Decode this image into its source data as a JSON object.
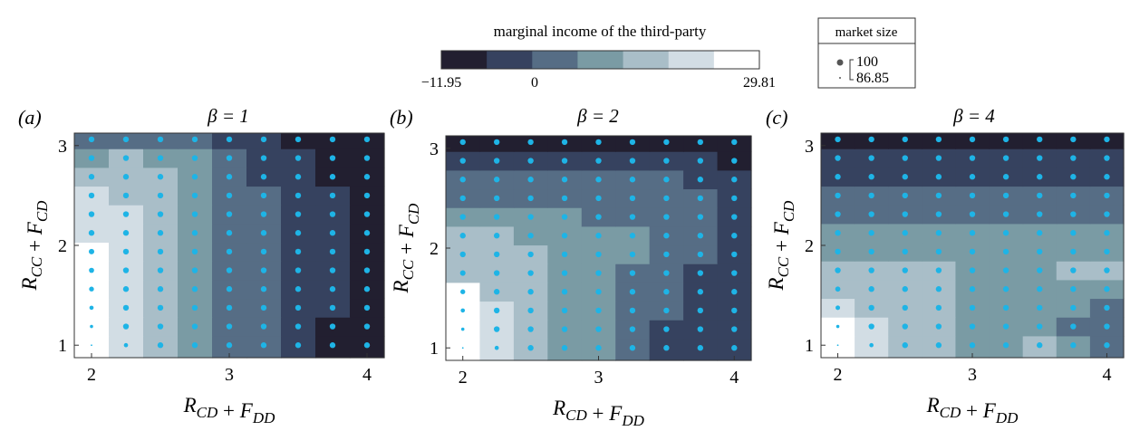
{
  "colorbar": {
    "title": "marginal income of the third-party",
    "min_label": "−11.95",
    "mid_label": "0",
    "max_label": "29.81",
    "colors": [
      "#221f30",
      "#36425f",
      "#566d85",
      "#7a9ba4",
      "#a9bec8",
      "#d2dde4",
      "#ffffff"
    ]
  },
  "size_legend": {
    "title": "market size",
    "max_label": "100",
    "min_label": "86.85",
    "dot_color": "#555555"
  },
  "dot_color": "#1eb4e6",
  "chart_data": [
    {
      "type": "heatmap",
      "panel_label": "(a)",
      "title": "β = 1",
      "xlabel": "R_CD + F_DD",
      "ylabel": "R_CC + F_CD",
      "xlim": [
        1.875,
        4.125
      ],
      "ylim": [
        0.875,
        3.125
      ],
      "xticks": [
        "2",
        "3",
        "4"
      ],
      "yticks": [
        "1",
        "2",
        "3"
      ],
      "x": [
        2.0,
        2.25,
        2.5,
        2.75,
        3.0,
        3.25,
        3.5,
        3.75,
        4.0
      ],
      "y": [
        1.0,
        1.1875,
        1.375,
        1.5625,
        1.75,
        1.9375,
        2.125,
        2.3125,
        2.5,
        2.6875,
        2.875,
        3.0625
      ],
      "color_levels": [
        [
          6,
          5,
          4,
          3,
          2,
          2,
          1,
          0,
          0
        ],
        [
          6,
          5,
          4,
          3,
          2,
          2,
          1,
          0,
          0
        ],
        [
          6,
          5,
          4,
          3,
          2,
          2,
          1,
          1,
          0
        ],
        [
          6,
          5,
          4,
          3,
          2,
          2,
          1,
          1,
          0
        ],
        [
          6,
          5,
          4,
          3,
          2,
          2,
          1,
          1,
          0
        ],
        [
          6,
          5,
          4,
          3,
          2,
          2,
          1,
          1,
          0
        ],
        [
          5,
          5,
          4,
          3,
          2,
          2,
          1,
          1,
          0
        ],
        [
          5,
          5,
          4,
          3,
          2,
          2,
          1,
          1,
          0
        ],
        [
          5,
          4,
          4,
          3,
          2,
          2,
          1,
          1,
          0
        ],
        [
          4,
          4,
          4,
          3,
          2,
          1,
          1,
          0,
          0
        ],
        [
          3,
          4,
          3,
          3,
          2,
          1,
          1,
          0,
          0
        ],
        [
          2,
          2,
          2,
          2,
          1,
          1,
          0,
          0,
          0
        ]
      ],
      "market_size": [
        [
          86.9,
          95,
          100,
          100,
          100,
          100,
          100,
          100,
          100
        ],
        [
          92,
          100,
          100,
          100,
          100,
          100,
          100,
          100,
          100
        ],
        [
          95,
          100,
          100,
          100,
          100,
          100,
          100,
          100,
          100
        ],
        [
          97,
          100,
          100,
          100,
          100,
          100,
          100,
          100,
          100
        ],
        [
          98,
          100,
          100,
          100,
          100,
          100,
          100,
          100,
          100
        ],
        [
          99,
          100,
          100,
          100,
          100,
          100,
          100,
          100,
          100
        ],
        [
          100,
          100,
          100,
          100,
          100,
          100,
          100,
          100,
          100
        ],
        [
          100,
          100,
          100,
          100,
          100,
          100,
          100,
          100,
          100
        ],
        [
          100,
          100,
          100,
          100,
          100,
          100,
          100,
          100,
          100
        ],
        [
          100,
          100,
          100,
          100,
          100,
          100,
          100,
          100,
          100
        ],
        [
          100,
          100,
          100,
          100,
          100,
          100,
          100,
          100,
          100
        ],
        [
          100,
          100,
          100,
          100,
          100,
          100,
          100,
          100,
          100
        ]
      ]
    },
    {
      "type": "heatmap",
      "panel_label": "(b)",
      "title": "β = 2",
      "xlabel": "R_CD + F_DD",
      "ylabel": "R_CC + F_CD",
      "xlim": [
        1.875,
        4.125
      ],
      "ylim": [
        0.875,
        3.125
      ],
      "xticks": [
        "2",
        "3",
        "4"
      ],
      "yticks": [
        "1",
        "2",
        "3"
      ],
      "x": [
        2.0,
        2.25,
        2.5,
        2.75,
        3.0,
        3.25,
        3.5,
        3.75,
        4.0
      ],
      "y": [
        1.0,
        1.1875,
        1.375,
        1.5625,
        1.75,
        1.9375,
        2.125,
        2.3125,
        2.5,
        2.6875,
        2.875,
        3.0625
      ],
      "color_levels": [
        [
          6,
          5,
          4,
          3,
          3,
          2,
          1,
          1,
          1
        ],
        [
          6,
          5,
          4,
          3,
          3,
          2,
          1,
          1,
          1
        ],
        [
          6,
          5,
          4,
          3,
          3,
          2,
          2,
          1,
          1
        ],
        [
          6,
          4,
          4,
          3,
          3,
          2,
          2,
          1,
          1
        ],
        [
          4,
          4,
          4,
          3,
          3,
          2,
          2,
          1,
          1
        ],
        [
          4,
          4,
          4,
          3,
          3,
          3,
          2,
          2,
          1
        ],
        [
          4,
          4,
          3,
          3,
          3,
          3,
          2,
          2,
          1
        ],
        [
          3,
          3,
          3,
          3,
          2,
          2,
          2,
          2,
          1
        ],
        [
          2,
          2,
          2,
          2,
          2,
          2,
          2,
          2,
          1
        ],
        [
          2,
          2,
          2,
          2,
          2,
          2,
          2,
          1,
          1
        ],
        [
          1,
          1,
          1,
          1,
          1,
          1,
          1,
          1,
          0
        ],
        [
          0,
          0,
          0,
          0,
          0,
          0,
          0,
          0,
          0
        ]
      ],
      "market_size": [
        [
          86.9,
          95,
          100,
          100,
          100,
          100,
          100,
          100,
          100
        ],
        [
          92,
          100,
          100,
          100,
          100,
          100,
          100,
          100,
          100
        ],
        [
          95,
          100,
          100,
          100,
          100,
          100,
          100,
          100,
          100
        ],
        [
          97,
          100,
          100,
          100,
          100,
          100,
          100,
          100,
          100
        ],
        [
          99,
          100,
          100,
          100,
          100,
          100,
          100,
          100,
          100
        ],
        [
          100,
          100,
          100,
          100,
          100,
          100,
          100,
          100,
          100
        ],
        [
          100,
          100,
          100,
          100,
          100,
          100,
          100,
          100,
          100
        ],
        [
          100,
          100,
          100,
          100,
          100,
          100,
          100,
          100,
          100
        ],
        [
          100,
          100,
          100,
          100,
          100,
          100,
          100,
          100,
          100
        ],
        [
          100,
          100,
          100,
          100,
          100,
          100,
          100,
          100,
          100
        ],
        [
          100,
          100,
          100,
          100,
          100,
          100,
          100,
          100,
          100
        ],
        [
          100,
          100,
          100,
          100,
          100,
          100,
          100,
          100,
          100
        ]
      ]
    },
    {
      "type": "heatmap",
      "panel_label": "(c)",
      "title": "β = 4",
      "xlabel": "R_CD + F_DD",
      "ylabel": "R_CC + F_CD",
      "xlim": [
        1.875,
        4.125
      ],
      "ylim": [
        0.875,
        3.125
      ],
      "xticks": [
        "2",
        "3",
        "4"
      ],
      "yticks": [
        "1",
        "2",
        "3"
      ],
      "x": [
        2.0,
        2.25,
        2.5,
        2.75,
        3.0,
        3.25,
        3.5,
        3.75,
        4.0
      ],
      "y": [
        1.0,
        1.1875,
        1.375,
        1.5625,
        1.75,
        1.9375,
        2.125,
        2.3125,
        2.5,
        2.6875,
        2.875,
        3.0625
      ],
      "color_levels": [
        [
          6,
          5,
          4,
          4,
          3,
          3,
          4,
          3,
          2
        ],
        [
          6,
          5,
          4,
          4,
          3,
          3,
          3,
          2,
          2
        ],
        [
          5,
          4,
          4,
          4,
          3,
          3,
          3,
          3,
          2
        ],
        [
          4,
          4,
          4,
          4,
          3,
          3,
          3,
          3,
          3
        ],
        [
          4,
          4,
          4,
          4,
          3,
          3,
          3,
          4,
          4
        ],
        [
          3,
          3,
          3,
          3,
          3,
          3,
          3,
          3,
          3
        ],
        [
          3,
          3,
          3,
          3,
          3,
          3,
          3,
          3,
          3
        ],
        [
          2,
          2,
          2,
          2,
          2,
          2,
          2,
          2,
          2
        ],
        [
          2,
          2,
          2,
          2,
          2,
          2,
          2,
          2,
          2
        ],
        [
          1,
          1,
          1,
          1,
          1,
          1,
          1,
          1,
          1
        ],
        [
          1,
          1,
          1,
          1,
          1,
          1,
          1,
          1,
          1
        ],
        [
          0,
          0,
          0,
          0,
          0,
          0,
          0,
          0,
          0
        ]
      ],
      "market_size": [
        [
          86.9,
          95,
          100,
          100,
          100,
          100,
          100,
          100,
          100
        ],
        [
          92,
          100,
          100,
          100,
          100,
          100,
          100,
          100,
          100
        ],
        [
          96,
          100,
          100,
          100,
          100,
          100,
          100,
          100,
          100
        ],
        [
          98,
          100,
          100,
          100,
          100,
          100,
          100,
          100,
          100
        ],
        [
          100,
          100,
          100,
          100,
          100,
          100,
          100,
          100,
          100
        ],
        [
          100,
          100,
          100,
          100,
          100,
          100,
          100,
          100,
          100
        ],
        [
          100,
          100,
          100,
          100,
          100,
          100,
          100,
          100,
          100
        ],
        [
          100,
          100,
          100,
          100,
          100,
          100,
          100,
          100,
          100
        ],
        [
          100,
          100,
          100,
          100,
          100,
          100,
          100,
          100,
          100
        ],
        [
          100,
          100,
          100,
          100,
          100,
          100,
          100,
          100,
          100
        ],
        [
          100,
          100,
          100,
          100,
          100,
          100,
          100,
          100,
          100
        ],
        [
          100,
          100,
          100,
          100,
          100,
          100,
          100,
          100,
          100
        ]
      ]
    }
  ]
}
